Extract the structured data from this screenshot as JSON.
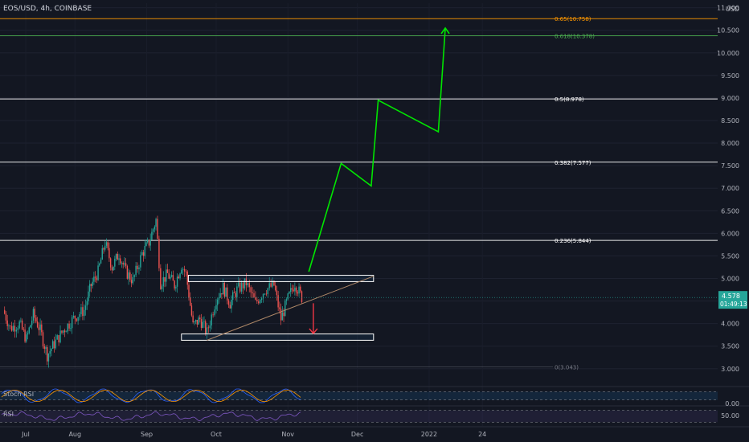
{
  "header": {
    "title": "EOS/USD, 4h, COINBASE"
  },
  "panels": {
    "stoch_label": "Stoch RSI",
    "rsi_label": "RSI",
    "stoch_axis_label": "0.00",
    "rsi_axis_label": "50.00"
  },
  "price_tag": {
    "value": "4.578",
    "countdown": "01:49:13",
    "color": "#26a69a"
  },
  "colors": {
    "background": "#131722",
    "up_candle": "#26a69a",
    "down_candle": "#ef5350",
    "fib_white": "#ffffff",
    "fib_orange": "#ff9800",
    "fib_green": "#4caf50",
    "fib_zero": "#787b86",
    "projection": "#00e600",
    "down_arrow": "#f23645",
    "trendline": "#b08968",
    "stoch_k": "#2962ff",
    "stoch_d": "#ff9800",
    "rsi_line": "#7e57c2"
  },
  "chart_data": {
    "type": "candlestick",
    "symbol": "EOS/USD",
    "timeframe": "4h",
    "exchange": "COINBASE",
    "y_axis": {
      "unit": "USD",
      "ticks": [
        "11.000",
        "10.500",
        "10.000",
        "9.500",
        "9.000",
        "8.500",
        "8.000",
        "7.500",
        "7.000",
        "6.500",
        "6.000",
        "5.500",
        "5.000",
        "4.500",
        "4.000",
        "3.500",
        "3.000"
      ],
      "range": [
        2.8,
        11.1
      ]
    },
    "x_axis": {
      "ticks": [
        "Jul",
        "Aug",
        "Sep",
        "Oct",
        "Nov",
        "Dec",
        "2022",
        "24"
      ]
    },
    "price_path": [
      [
        "2021-07-01",
        4.3
      ],
      [
        "2021-07-04",
        3.9
      ],
      [
        "2021-07-08",
        4.0
      ],
      [
        "2021-07-11",
        3.65
      ],
      [
        "2021-07-14",
        4.2
      ],
      [
        "2021-07-17",
        3.85
      ],
      [
        "2021-07-20",
        3.3
      ],
      [
        "2021-07-23",
        3.55
      ],
      [
        "2021-07-27",
        3.85
      ],
      [
        "2021-08-01",
        4.15
      ],
      [
        "2021-08-05",
        4.3
      ],
      [
        "2021-08-08",
        4.85
      ],
      [
        "2021-08-11",
        5.15
      ],
      [
        "2021-08-14",
        5.8
      ],
      [
        "2021-08-17",
        5.25
      ],
      [
        "2021-08-20",
        5.55
      ],
      [
        "2021-08-23",
        5.15
      ],
      [
        "2021-08-26",
        4.95
      ],
      [
        "2021-08-30",
        5.55
      ],
      [
        "2021-09-02",
        5.8
      ],
      [
        "2021-09-05",
        6.3
      ],
      [
        "2021-09-07",
        4.9
      ],
      [
        "2021-09-10",
        5.1
      ],
      [
        "2021-09-13",
        4.85
      ],
      [
        "2021-09-16",
        5.3
      ],
      [
        "2021-09-18",
        5.1
      ],
      [
        "2021-09-21",
        3.95
      ],
      [
        "2021-09-24",
        4.1
      ],
      [
        "2021-09-27",
        3.8
      ],
      [
        "2021-10-01",
        4.55
      ],
      [
        "2021-10-04",
        4.8
      ],
      [
        "2021-10-07",
        4.45
      ],
      [
        "2021-10-10",
        4.75
      ],
      [
        "2021-10-14",
        4.9
      ],
      [
        "2021-10-18",
        4.45
      ],
      [
        "2021-10-22",
        4.75
      ],
      [
        "2021-10-26",
        4.85
      ],
      [
        "2021-10-29",
        4.1
      ],
      [
        "2021-11-01",
        4.55
      ],
      [
        "2021-11-04",
        4.9
      ],
      [
        "2021-11-07",
        4.578
      ]
    ],
    "fibonacci_levels": [
      {
        "label": "0.65(10.758)",
        "value": 10.758,
        "color": "#ff9800"
      },
      {
        "label": "0.618(10.378)",
        "value": 10.378,
        "color": "#4caf50"
      },
      {
        "label": "0.5(8.978)",
        "value": 8.978,
        "color": "#ffffff"
      },
      {
        "label": "0.382(7.577)",
        "value": 7.577,
        "color": "#ffffff"
      },
      {
        "label": "0.236(5.844)",
        "value": 5.844,
        "color": "#ffffff"
      },
      {
        "label": "0(3.043)",
        "value": 3.043,
        "color": "#787b86"
      }
    ],
    "annotations": {
      "resistance_box": {
        "from": "2021-09-19",
        "to": "2021-12-08",
        "top": 5.07,
        "bottom": 4.93
      },
      "support_box": {
        "from": "2021-09-16",
        "to": "2021-12-08",
        "top": 3.77,
        "bottom": 3.63
      },
      "trendline": [
        [
          "2021-09-27",
          3.63
        ],
        [
          "2021-12-08",
          5.05
        ]
      ],
      "projection_path": [
        [
          "2021-11-10",
          5.15
        ],
        [
          "2021-11-24",
          7.55
        ],
        [
          "2021-12-07",
          7.05
        ],
        [
          "2021-12-10",
          8.95
        ],
        [
          "2022-01-05",
          8.25
        ],
        [
          "2022-01-08",
          10.55
        ]
      ],
      "down_arrow": [
        [
          "2021-11-12",
          4.45
        ],
        [
          "2021-11-12",
          3.78
        ]
      ]
    },
    "indicators": {
      "stoch_rsi": {
        "series": [
          {
            "name": "K"
          },
          {
            "name": "D"
          }
        ],
        "band_high": 80,
        "band_low": 20
      },
      "rsi": {
        "band_high": 70,
        "band_low": 30,
        "mid": 50
      }
    }
  }
}
